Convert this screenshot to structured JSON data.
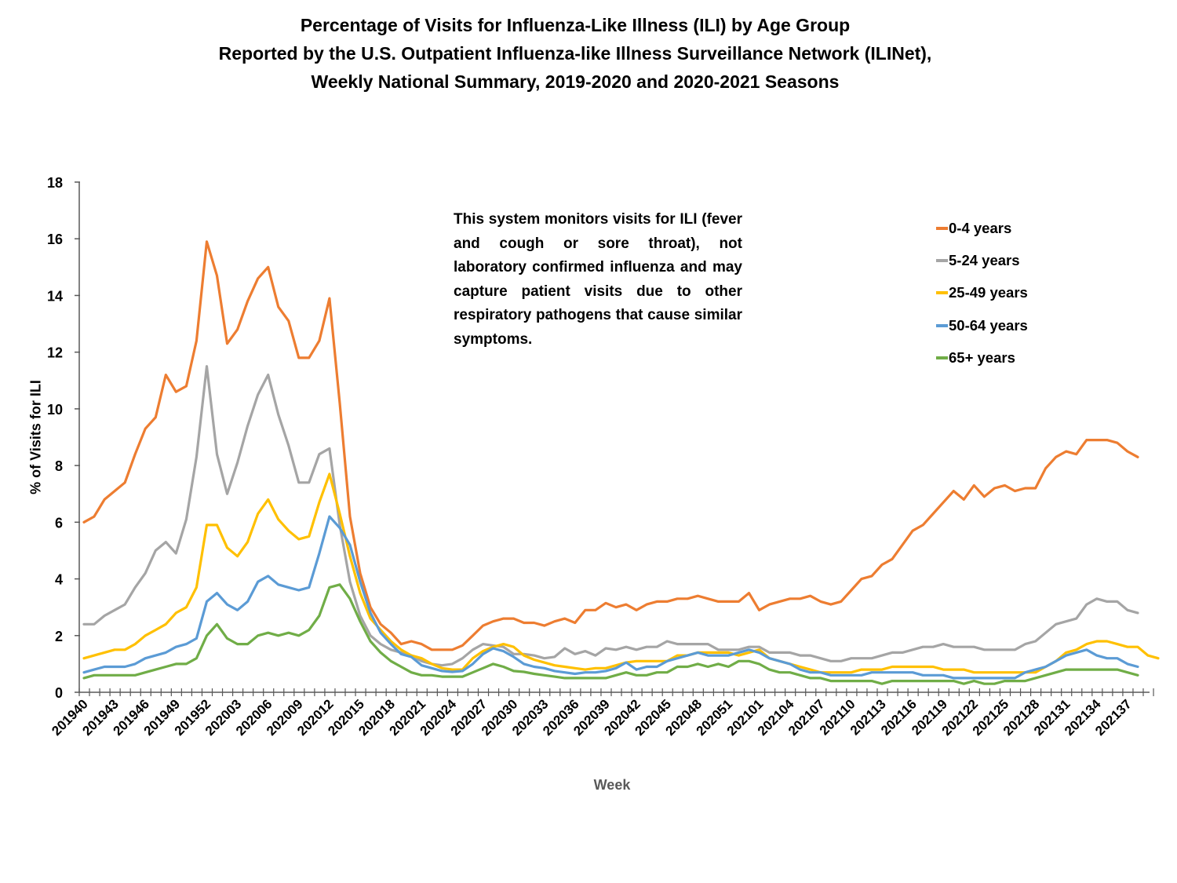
{
  "chart_data": {
    "type": "line",
    "title": [
      "Percentage of Visits for Influenza-Like Illness (ILI) by Age Group",
      "Reported by the U.S. Outpatient Influenza-like Illness Surveillance Network (ILINet),",
      "Weekly National Summary, 2019-2020 and 2020-2021 Seasons"
    ],
    "xlabel": "Week",
    "ylabel": "% of Visits for ILI",
    "ylim": [
      0,
      18
    ],
    "yticks": [
      0,
      2,
      4,
      6,
      8,
      10,
      12,
      14,
      16,
      18
    ],
    "grid": false,
    "legend_position": "top-right",
    "annotation": "This system monitors visits for ILI (fever and cough or sore throat), not laboratory confirmed influenza and may capture patient visits due to other respiratory pathogens that cause similar symptoms.",
    "x": [
      "201940",
      "201941",
      "201942",
      "201943",
      "201944",
      "201945",
      "201946",
      "201947",
      "201948",
      "201949",
      "201950",
      "201951",
      "201952",
      "202001",
      "202002",
      "202003",
      "202004",
      "202005",
      "202006",
      "202007",
      "202008",
      "202009",
      "202010",
      "202011",
      "202012",
      "202013",
      "202014",
      "202015",
      "202016",
      "202017",
      "202018",
      "202019",
      "202020",
      "202021",
      "202022",
      "202023",
      "202024",
      "202025",
      "202026",
      "202027",
      "202028",
      "202029",
      "202030",
      "202031",
      "202032",
      "202033",
      "202034",
      "202035",
      "202036",
      "202037",
      "202038",
      "202039",
      "202040",
      "202041",
      "202042",
      "202043",
      "202044",
      "202045",
      "202046",
      "202047",
      "202048",
      "202049",
      "202050",
      "202051",
      "202052",
      "202053",
      "202101",
      "202102",
      "202103",
      "202104",
      "202105",
      "202106",
      "202107",
      "202108",
      "202109",
      "202110",
      "202111",
      "202112",
      "202113",
      "202114",
      "202115",
      "202116",
      "202117",
      "202118",
      "202119",
      "202120",
      "202121",
      "202122",
      "202123",
      "202124",
      "202125",
      "202126",
      "202127",
      "202128",
      "202129",
      "202130",
      "202131",
      "202132",
      "202133",
      "202134",
      "202135",
      "202136",
      "202137",
      "202138",
      "202139"
    ],
    "x_tick_labels": [
      "201940",
      "201943",
      "201946",
      "201949",
      "201952",
      "202003",
      "202006",
      "202009",
      "202012",
      "202015",
      "202018",
      "202021",
      "202024",
      "202027",
      "202030",
      "202033",
      "202036",
      "202039",
      "202042",
      "202045",
      "202048",
      "202051",
      "202101",
      "202104",
      "202107",
      "202110",
      "202113",
      "202116",
      "202119",
      "202122",
      "202125",
      "202128",
      "202131",
      "202134",
      "202137"
    ],
    "series": [
      {
        "name": "0-4 years",
        "color": "#ED7D31",
        "values": [
          6.0,
          6.2,
          6.8,
          7.1,
          7.4,
          8.4,
          9.3,
          9.7,
          11.2,
          10.6,
          10.8,
          12.4,
          15.9,
          14.7,
          12.3,
          12.8,
          13.8,
          14.6,
          15.0,
          13.6,
          13.1,
          11.8,
          11.8,
          12.4,
          13.9,
          10.2,
          6.2,
          4.2,
          3.0,
          2.4,
          2.1,
          1.7,
          1.8,
          1.7,
          1.5,
          1.5,
          1.5,
          1.65,
          2.0,
          2.35,
          2.5,
          2.6,
          2.6,
          2.45,
          2.45,
          2.35,
          2.5,
          2.6,
          2.45,
          2.9,
          2.9,
          3.15,
          3.0,
          3.1,
          2.9,
          3.1,
          3.2,
          3.2,
          3.3,
          3.3,
          3.4,
          3.3,
          3.2,
          3.2,
          3.2,
          3.5,
          2.9,
          3.1,
          3.2,
          3.3,
          3.3,
          3.4,
          3.2,
          3.1,
          3.2,
          3.6,
          4.0,
          4.1,
          4.5,
          4.7,
          5.2,
          5.7,
          5.9,
          6.3,
          6.7,
          7.1,
          6.8,
          7.3,
          6.9,
          7.2,
          7.3,
          7.1,
          7.2,
          7.2,
          7.9,
          8.3,
          8.5,
          8.4,
          8.9,
          8.9,
          8.9,
          8.8,
          8.5,
          8.3
        ]
      },
      {
        "name": "5-24 years",
        "color": "#A5A5A5",
        "values": [
          2.4,
          2.4,
          2.7,
          2.9,
          3.1,
          3.7,
          4.2,
          5.0,
          5.3,
          4.9,
          6.1,
          8.3,
          11.5,
          8.4,
          7.0,
          8.1,
          9.4,
          10.5,
          11.2,
          9.8,
          8.7,
          7.4,
          7.4,
          8.4,
          8.6,
          5.9,
          3.9,
          2.7,
          2.0,
          1.7,
          1.5,
          1.4,
          1.3,
          1.1,
          1.0,
          0.95,
          1.0,
          1.2,
          1.5,
          1.7,
          1.65,
          1.6,
          1.35,
          1.35,
          1.3,
          1.2,
          1.25,
          1.55,
          1.35,
          1.45,
          1.3,
          1.55,
          1.5,
          1.6,
          1.5,
          1.6,
          1.6,
          1.8,
          1.7,
          1.7,
          1.7,
          1.7,
          1.5,
          1.5,
          1.5,
          1.6,
          1.6,
          1.4,
          1.4,
          1.4,
          1.3,
          1.3,
          1.2,
          1.1,
          1.1,
          1.2,
          1.2,
          1.2,
          1.3,
          1.4,
          1.4,
          1.5,
          1.6,
          1.6,
          1.7,
          1.6,
          1.6,
          1.6,
          1.5,
          1.5,
          1.5,
          1.5,
          1.7,
          1.8,
          2.1,
          2.4,
          2.5,
          2.6,
          3.1,
          3.3,
          3.2,
          3.2,
          2.9,
          2.8
        ]
      },
      {
        "name": "25-49 years",
        "color": "#FFC000",
        "values": [
          1.2,
          1.3,
          1.4,
          1.5,
          1.5,
          1.7,
          2.0,
          2.2,
          2.4,
          2.8,
          3.0,
          3.7,
          5.9,
          5.9,
          5.1,
          4.8,
          5.3,
          6.3,
          6.8,
          6.1,
          5.7,
          5.4,
          5.5,
          6.7,
          7.7,
          6.3,
          4.8,
          3.5,
          2.6,
          2.2,
          1.8,
          1.5,
          1.3,
          1.2,
          1.0,
          0.85,
          0.8,
          0.8,
          1.2,
          1.45,
          1.6,
          1.7,
          1.6,
          1.3,
          1.15,
          1.05,
          0.95,
          0.9,
          0.85,
          0.8,
          0.85,
          0.85,
          0.95,
          1.05,
          1.1,
          1.1,
          1.1,
          1.1,
          1.3,
          1.3,
          1.4,
          1.4,
          1.4,
          1.4,
          1.3,
          1.4,
          1.5,
          1.2,
          1.1,
          1.0,
          0.9,
          0.8,
          0.7,
          0.7,
          0.7,
          0.7,
          0.8,
          0.8,
          0.8,
          0.9,
          0.9,
          0.9,
          0.9,
          0.9,
          0.8,
          0.8,
          0.8,
          0.7,
          0.7,
          0.7,
          0.7,
          0.7,
          0.7,
          0.7,
          0.9,
          1.1,
          1.4,
          1.5,
          1.7,
          1.8,
          1.8,
          1.7,
          1.6,
          1.6,
          1.3,
          1.2
        ]
      },
      {
        "name": "50-64 years",
        "color": "#5B9BD5",
        "values": [
          0.7,
          0.8,
          0.9,
          0.9,
          0.9,
          1.0,
          1.2,
          1.3,
          1.4,
          1.6,
          1.7,
          1.9,
          3.2,
          3.5,
          3.1,
          2.9,
          3.2,
          3.9,
          4.1,
          3.8,
          3.7,
          3.6,
          3.7,
          4.9,
          6.2,
          5.8,
          5.2,
          3.9,
          2.8,
          2.1,
          1.7,
          1.35,
          1.25,
          0.95,
          0.85,
          0.75,
          0.72,
          0.75,
          1.0,
          1.35,
          1.55,
          1.45,
          1.25,
          1.0,
          0.9,
          0.85,
          0.75,
          0.7,
          0.65,
          0.7,
          0.7,
          0.75,
          0.85,
          1.05,
          0.8,
          0.9,
          0.9,
          1.1,
          1.2,
          1.3,
          1.4,
          1.3,
          1.3,
          1.3,
          1.4,
          1.5,
          1.4,
          1.2,
          1.1,
          1.0,
          0.8,
          0.7,
          0.7,
          0.6,
          0.6,
          0.6,
          0.6,
          0.7,
          0.7,
          0.7,
          0.7,
          0.7,
          0.6,
          0.6,
          0.6,
          0.5,
          0.5,
          0.5,
          0.5,
          0.5,
          0.5,
          0.5,
          0.7,
          0.8,
          0.9,
          1.1,
          1.3,
          1.4,
          1.5,
          1.3,
          1.2,
          1.2,
          1.0,
          0.9
        ]
      },
      {
        "name": "65+ years",
        "color": "#70AD47",
        "values": [
          0.5,
          0.6,
          0.6,
          0.6,
          0.6,
          0.6,
          0.7,
          0.8,
          0.9,
          1.0,
          1.0,
          1.2,
          2.0,
          2.4,
          1.9,
          1.7,
          1.7,
          2.0,
          2.1,
          2.0,
          2.1,
          2.0,
          2.2,
          2.7,
          3.7,
          3.8,
          3.3,
          2.5,
          1.8,
          1.4,
          1.1,
          0.9,
          0.7,
          0.6,
          0.6,
          0.55,
          0.55,
          0.55,
          0.7,
          0.85,
          1.0,
          0.9,
          0.75,
          0.72,
          0.65,
          0.6,
          0.55,
          0.5,
          0.5,
          0.5,
          0.5,
          0.5,
          0.6,
          0.7,
          0.6,
          0.6,
          0.7,
          0.7,
          0.9,
          0.9,
          1.0,
          0.9,
          1.0,
          0.9,
          1.1,
          1.1,
          1.0,
          0.8,
          0.7,
          0.7,
          0.6,
          0.5,
          0.5,
          0.4,
          0.4,
          0.4,
          0.4,
          0.4,
          0.3,
          0.4,
          0.4,
          0.4,
          0.4,
          0.4,
          0.4,
          0.4,
          0.3,
          0.4,
          0.3,
          0.3,
          0.4,
          0.4,
          0.4,
          0.5,
          0.6,
          0.7,
          0.8,
          0.8,
          0.8,
          0.8,
          0.8,
          0.8,
          0.7,
          0.6
        ]
      }
    ]
  }
}
